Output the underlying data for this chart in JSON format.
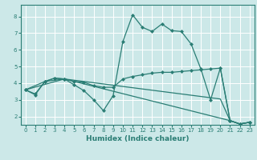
{
  "xlabel": "Humidex (Indice chaleur)",
  "background_color": "#cce8e8",
  "grid_color": "#ffffff",
  "line_color": "#2a7d74",
  "xlim": [
    -0.5,
    23.5
  ],
  "ylim": [
    1.5,
    8.7
  ],
  "xticks": [
    0,
    1,
    2,
    3,
    4,
    5,
    6,
    7,
    8,
    9,
    10,
    11,
    12,
    13,
    14,
    15,
    16,
    17,
    18,
    19,
    20,
    21,
    22,
    23
  ],
  "yticks": [
    2,
    3,
    4,
    5,
    6,
    7,
    8
  ],
  "line1_x": [
    0,
    1,
    2,
    3,
    4,
    5,
    6,
    7,
    8,
    9,
    10,
    11,
    12,
    13,
    14,
    15,
    16,
    17,
    18,
    19,
    20,
    21,
    22,
    23
  ],
  "line1_y": [
    3.6,
    3.3,
    4.1,
    4.3,
    4.25,
    3.9,
    3.55,
    3.0,
    2.35,
    3.25,
    6.5,
    8.1,
    7.35,
    7.1,
    7.55,
    7.15,
    7.1,
    6.35,
    4.85,
    3.0,
    4.9,
    1.75,
    1.55,
    1.65
  ],
  "line2_x": [
    0,
    1,
    2,
    3,
    4,
    5,
    6,
    7,
    8,
    9,
    10,
    11,
    12,
    13,
    14,
    15,
    16,
    17,
    18,
    19,
    20,
    21,
    22,
    23
  ],
  "line2_y": [
    3.6,
    3.35,
    4.1,
    4.3,
    4.25,
    4.1,
    4.05,
    3.85,
    3.75,
    3.75,
    4.25,
    4.4,
    4.5,
    4.6,
    4.65,
    4.65,
    4.7,
    4.75,
    4.8,
    4.85,
    4.9,
    1.75,
    1.55,
    1.65
  ],
  "line3_x": [
    0,
    2,
    4,
    21,
    22,
    23
  ],
  "line3_y": [
    3.6,
    4.1,
    4.25,
    1.75,
    1.55,
    1.65
  ],
  "line4_x": [
    0,
    4,
    20,
    21,
    22,
    23
  ],
  "line4_y": [
    3.6,
    4.25,
    3.05,
    1.75,
    1.55,
    1.65
  ]
}
